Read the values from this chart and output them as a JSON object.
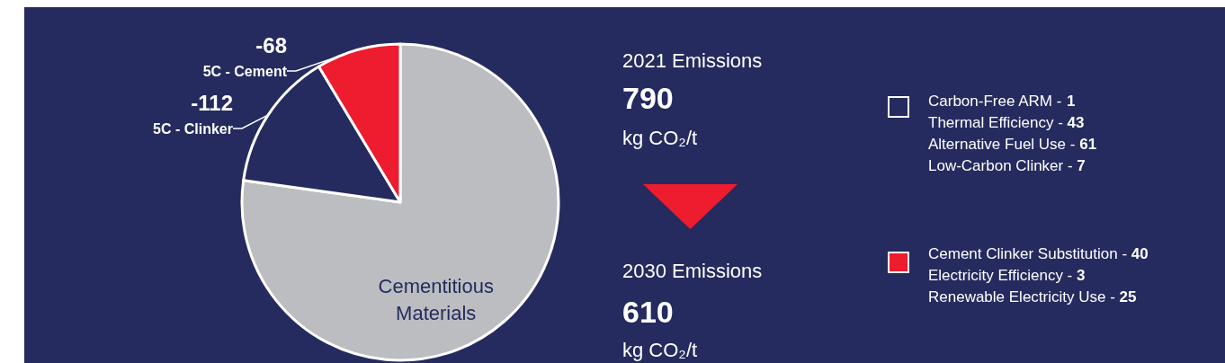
{
  "chart_data": {
    "type": "pie",
    "categories": [
      "Cementitious Materials",
      "5C - Clinker",
      "5C - Cement"
    ],
    "values": [
      77.2,
      14.2,
      8.6
    ],
    "colors": [
      "#bcbdc0",
      "#252b5e",
      "#ed1c2e"
    ],
    "legend": false,
    "annotations": [
      "2021 Emissions",
      "790",
      "kg CO₂/t",
      "2030 Emissions",
      "610",
      "kg CO₂/t",
      "Carbon-Free ARM - 1",
      "Thermal Efficiency - 43",
      "Alternative Fuel Use - 61",
      "Low-Carbon Clinker - 7",
      "Cement Clinker Substitution - 40",
      "Electricity Efficiency - 3",
      "Renewable Electricity Use - 25",
      "-112",
      "-68"
    ]
  }
}
